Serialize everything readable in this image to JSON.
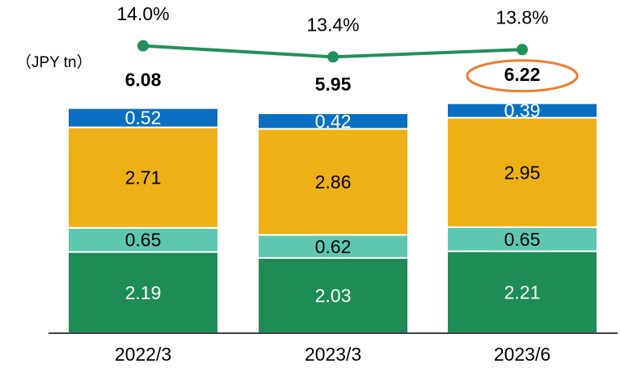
{
  "chart_data": {
    "type": "bar",
    "unit_label": "（JPY tn）",
    "categories": [
      "2022/3",
      "2023/3",
      "2023/6"
    ],
    "stacked": true,
    "series": [
      {
        "color": "#1e8c55",
        "label_color": "#ffffff",
        "values": [
          2.19,
          2.03,
          2.21
        ]
      },
      {
        "color": "#5ec7b0",
        "label_color": "#000000",
        "values": [
          0.65,
          0.62,
          0.65
        ]
      },
      {
        "color": "#edb016",
        "label_color": "#000000",
        "values": [
          2.71,
          2.86,
          2.95
        ]
      },
      {
        "color": "#0a6fc0",
        "label_color": "#ffffff",
        "values": [
          0.52,
          0.42,
          0.39
        ]
      },
      {
        "type": "line",
        "axis": "y2",
        "color": "#21915a",
        "values": [
          14.0,
          13.4,
          13.8
        ],
        "value_labels": [
          "14.0%",
          "13.4%",
          "13.8%"
        ]
      }
    ],
    "totals": [
      6.08,
      5.95,
      6.22
    ],
    "highlight_color": "#ed7d31",
    "ylim": [
      0,
      7
    ],
    "y2lim": [
      -1.5,
      15.6
    ]
  }
}
